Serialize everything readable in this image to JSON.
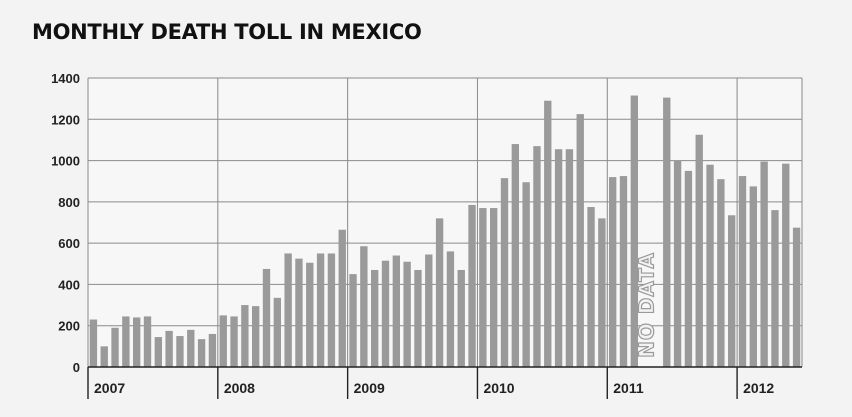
{
  "chart_data": {
    "type": "bar",
    "title": "MONTHLY DEATH TOLL IN MEXICO",
    "xlabel": "",
    "ylabel": "",
    "ylim": [
      0,
      1400
    ],
    "yticks": [
      0,
      200,
      400,
      600,
      800,
      1000,
      1200,
      1400
    ],
    "grid": true,
    "legend": "none",
    "years": [
      "2007",
      "2008",
      "2009",
      "2010",
      "2011",
      "2012"
    ],
    "annotation": "NO DATA",
    "bar_color": "#9a9a9a",
    "values": [
      230,
      100,
      190,
      245,
      240,
      245,
      145,
      175,
      150,
      180,
      135,
      160,
      250,
      245,
      300,
      295,
      475,
      335,
      550,
      525,
      505,
      550,
      550,
      665,
      450,
      585,
      470,
      515,
      540,
      510,
      470,
      545,
      720,
      560,
      470,
      785,
      770,
      770,
      915,
      1080,
      895,
      1070,
      1290,
      1055,
      1055,
      1225,
      775,
      720,
      920,
      925,
      1315,
      null,
      null,
      1305,
      1000,
      950,
      1125,
      980,
      910,
      735,
      925,
      875,
      995,
      760,
      985,
      675
    ]
  }
}
